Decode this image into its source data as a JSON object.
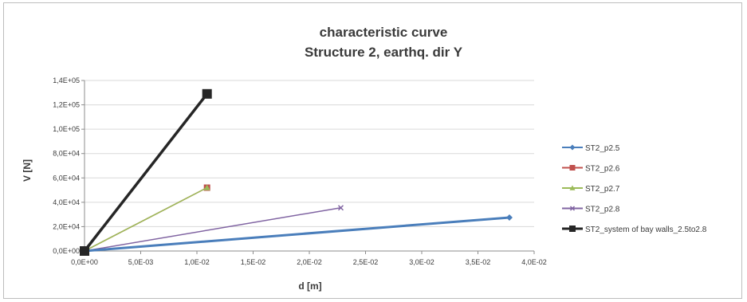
{
  "chart_data": {
    "type": "line",
    "title": "characteristic curve",
    "subtitle": "Structure 2, earthq. dir Y",
    "xlabel": "d [m]",
    "ylabel": "V [N]",
    "xlim": [
      0,
      0.04
    ],
    "ylim": [
      0,
      140000
    ],
    "x_ticks": [
      0,
      0.005,
      0.01,
      0.015,
      0.02,
      0.025,
      0.03,
      0.035,
      0.04
    ],
    "x_tick_labels": [
      "0,0E+00",
      "5,0E-03",
      "1,0E-02",
      "1,5E-02",
      "2,0E-02",
      "2,5E-02",
      "3,0E-02",
      "3,5E-02",
      "4,0E-02"
    ],
    "y_ticks": [
      0,
      20000,
      40000,
      60000,
      80000,
      100000,
      120000,
      140000
    ],
    "y_tick_labels": [
      "0,0E+00",
      "2,0E+04",
      "4,0E+04",
      "6,0E+04",
      "8,0E+04",
      "1,0E+05",
      "1,2E+05",
      "1,4E+05"
    ],
    "grid": "horizontal",
    "legend_position": "right",
    "series": [
      {
        "name": "ST2_p2.5",
        "color": "#4a7ebb",
        "marker": "diamond",
        "width": 3,
        "x": [
          0,
          0.0378
        ],
        "y": [
          0,
          27500
        ]
      },
      {
        "name": "ST2_p2.6",
        "color": "#c0504d",
        "marker": "square",
        "width": 1.5,
        "x": [
          0,
          0.0109
        ],
        "y": [
          0,
          52000
        ]
      },
      {
        "name": "ST2_p2.7",
        "color": "#9bbb59",
        "marker": "triangle",
        "width": 1.5,
        "x": [
          0,
          0.0109
        ],
        "y": [
          0,
          52000
        ]
      },
      {
        "name": "ST2_p2.8",
        "color": "#8064a2",
        "marker": "x",
        "width": 1.5,
        "x": [
          0,
          0.0228
        ],
        "y": [
          0,
          35500
        ]
      },
      {
        "name": "ST2_system of bay walls_2.5to2.8",
        "color": "#262626",
        "marker": "square",
        "width": 3.5,
        "x": [
          0,
          0.0109
        ],
        "y": [
          0,
          129000
        ]
      }
    ]
  }
}
